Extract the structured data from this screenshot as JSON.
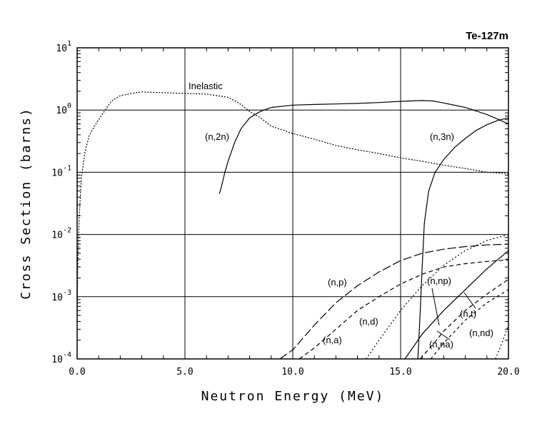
{
  "chart_data": {
    "type": "line",
    "title": "Te-127m",
    "xlabel": "Neutron Energy (MeV)",
    "ylabel": "Cross Section (barns)",
    "xlim": [
      0,
      20
    ],
    "ylim": [
      0.0001,
      10
    ],
    "yscale": "log",
    "x_ticks": [
      "0.0",
      "5.0",
      "10.0",
      "15.0",
      "20.0"
    ],
    "x_tick_values": [
      0,
      5,
      10,
      15,
      20
    ],
    "y_ticks": [
      {
        "base": "10",
        "exp": "1",
        "value": 10
      },
      {
        "base": "10",
        "exp": "0",
        "value": 1
      },
      {
        "base": "10",
        "exp": "-1",
        "value": 0.1
      },
      {
        "base": "10",
        "exp": "-2",
        "value": 0.01
      },
      {
        "base": "10",
        "exp": "-3",
        "value": 0.001
      },
      {
        "base": "10",
        "exp": "-4",
        "value": 0.0001
      }
    ],
    "grid": true,
    "series": [
      {
        "name": "Inelastic",
        "dash": "2,2",
        "x": [
          0.0,
          0.03,
          0.1,
          0.2,
          0.35,
          0.55,
          0.8,
          1.0,
          1.3,
          1.6,
          2.0,
          2.5,
          3.0,
          4.0,
          5.0,
          6.0,
          7.0,
          7.5,
          8.0,
          8.5,
          9.0,
          10.0,
          11.0,
          12.0,
          13.0,
          14.0,
          15.0,
          16.0,
          17.0,
          18.0,
          19.0,
          20.0
        ],
        "y": [
          0.0004,
          0.003,
          0.02,
          0.08,
          0.2,
          0.38,
          0.55,
          0.7,
          1.0,
          1.4,
          1.7,
          1.85,
          1.95,
          1.9,
          1.85,
          1.8,
          1.6,
          1.3,
          0.95,
          0.75,
          0.55,
          0.42,
          0.34,
          0.27,
          0.23,
          0.2,
          0.17,
          0.15,
          0.13,
          0.115,
          0.1,
          0.095
        ]
      },
      {
        "name": "(n,2n)",
        "dash": "",
        "x": [
          6.6,
          6.7,
          6.85,
          7.0,
          7.3,
          7.6,
          8.0,
          8.5,
          9.0,
          10.0,
          11.0,
          12.0,
          13.0,
          14.0,
          15.0,
          16.0,
          16.5,
          17.0,
          18.0,
          19.0,
          20.0
        ],
        "y": [
          0.045,
          0.06,
          0.1,
          0.15,
          0.3,
          0.5,
          0.75,
          0.95,
          1.1,
          1.2,
          1.23,
          1.25,
          1.28,
          1.32,
          1.38,
          1.42,
          1.4,
          1.3,
          1.1,
          0.85,
          0.6
        ]
      },
      {
        "name": "(n,3n)",
        "dash": "",
        "x": [
          15.8,
          15.9,
          16.0,
          16.1,
          16.3,
          16.6,
          17.0,
          17.5,
          18.0,
          18.5,
          19.0,
          19.5,
          20.0
        ],
        "y": [
          0.0001,
          0.0005,
          0.003,
          0.015,
          0.05,
          0.1,
          0.16,
          0.25,
          0.35,
          0.47,
          0.58,
          0.68,
          0.75
        ]
      },
      {
        "name": "(n,p)",
        "dash": "12,4",
        "x": [
          9.4,
          10.0,
          11.0,
          12.0,
          13.0,
          14.0,
          15.0,
          16.0,
          17.0,
          18.0,
          19.0,
          20.0
        ],
        "y": [
          0.0001,
          0.00014,
          0.00035,
          0.0008,
          0.0015,
          0.0025,
          0.0038,
          0.005,
          0.0058,
          0.0064,
          0.0068,
          0.007
        ]
      },
      {
        "name": "(n,a)",
        "dash": "6,4",
        "x": [
          10.3,
          11.0,
          12.0,
          13.0,
          14.0,
          15.0,
          16.0,
          17.0,
          18.0,
          19.0,
          20.0
        ],
        "y": [
          0.0001,
          0.00015,
          0.0003,
          0.0006,
          0.001,
          0.0016,
          0.0023,
          0.003,
          0.0034,
          0.0037,
          0.0039
        ]
      },
      {
        "name": "(n,d)",
        "dash": "2,3",
        "x": [
          13.4,
          14.0,
          15.0,
          16.0,
          17.0,
          18.0,
          19.0,
          20.0
        ],
        "y": [
          0.0001,
          0.0002,
          0.0006,
          0.0015,
          0.0032,
          0.0055,
          0.008,
          0.01
        ]
      },
      {
        "name": "(n,np)",
        "dash": "",
        "x": [
          15.2,
          16.0,
          17.0,
          18.0,
          19.0,
          20.0
        ],
        "y": [
          0.0001,
          0.00025,
          0.0006,
          0.0013,
          0.0028,
          0.0055
        ]
      },
      {
        "name": "(n,t)",
        "dash": "6,4",
        "x": [
          15.9,
          16.5,
          17.0,
          18.0,
          19.0,
          20.0
        ],
        "y": [
          0.0001,
          0.00017,
          0.00028,
          0.0006,
          0.0011,
          0.0019
        ]
      },
      {
        "name": "(n,na)",
        "dash": "4,4",
        "x": [
          16.4,
          17.0,
          18.0,
          19.0,
          20.0
        ],
        "y": [
          0.0001,
          0.00018,
          0.00042,
          0.0008,
          0.0013
        ]
      },
      {
        "name": "(n,nd)",
        "dash": "2,3",
        "x": [
          19.4,
          19.7,
          20.0
        ],
        "y": [
          0.0001,
          0.00018,
          0.00035
        ]
      }
    ],
    "annotations": [
      {
        "text": "Inelastic"
      },
      {
        "text": "(n,2n)"
      },
      {
        "text": "(n,3n)"
      },
      {
        "text": "(n,p)"
      },
      {
        "text": "(n,np)"
      },
      {
        "text": "(n,d)"
      },
      {
        "text": "(n,a)"
      },
      {
        "text": "(n,t)"
      },
      {
        "text": "(n,na)"
      },
      {
        "text": "(n,nd)"
      }
    ]
  }
}
